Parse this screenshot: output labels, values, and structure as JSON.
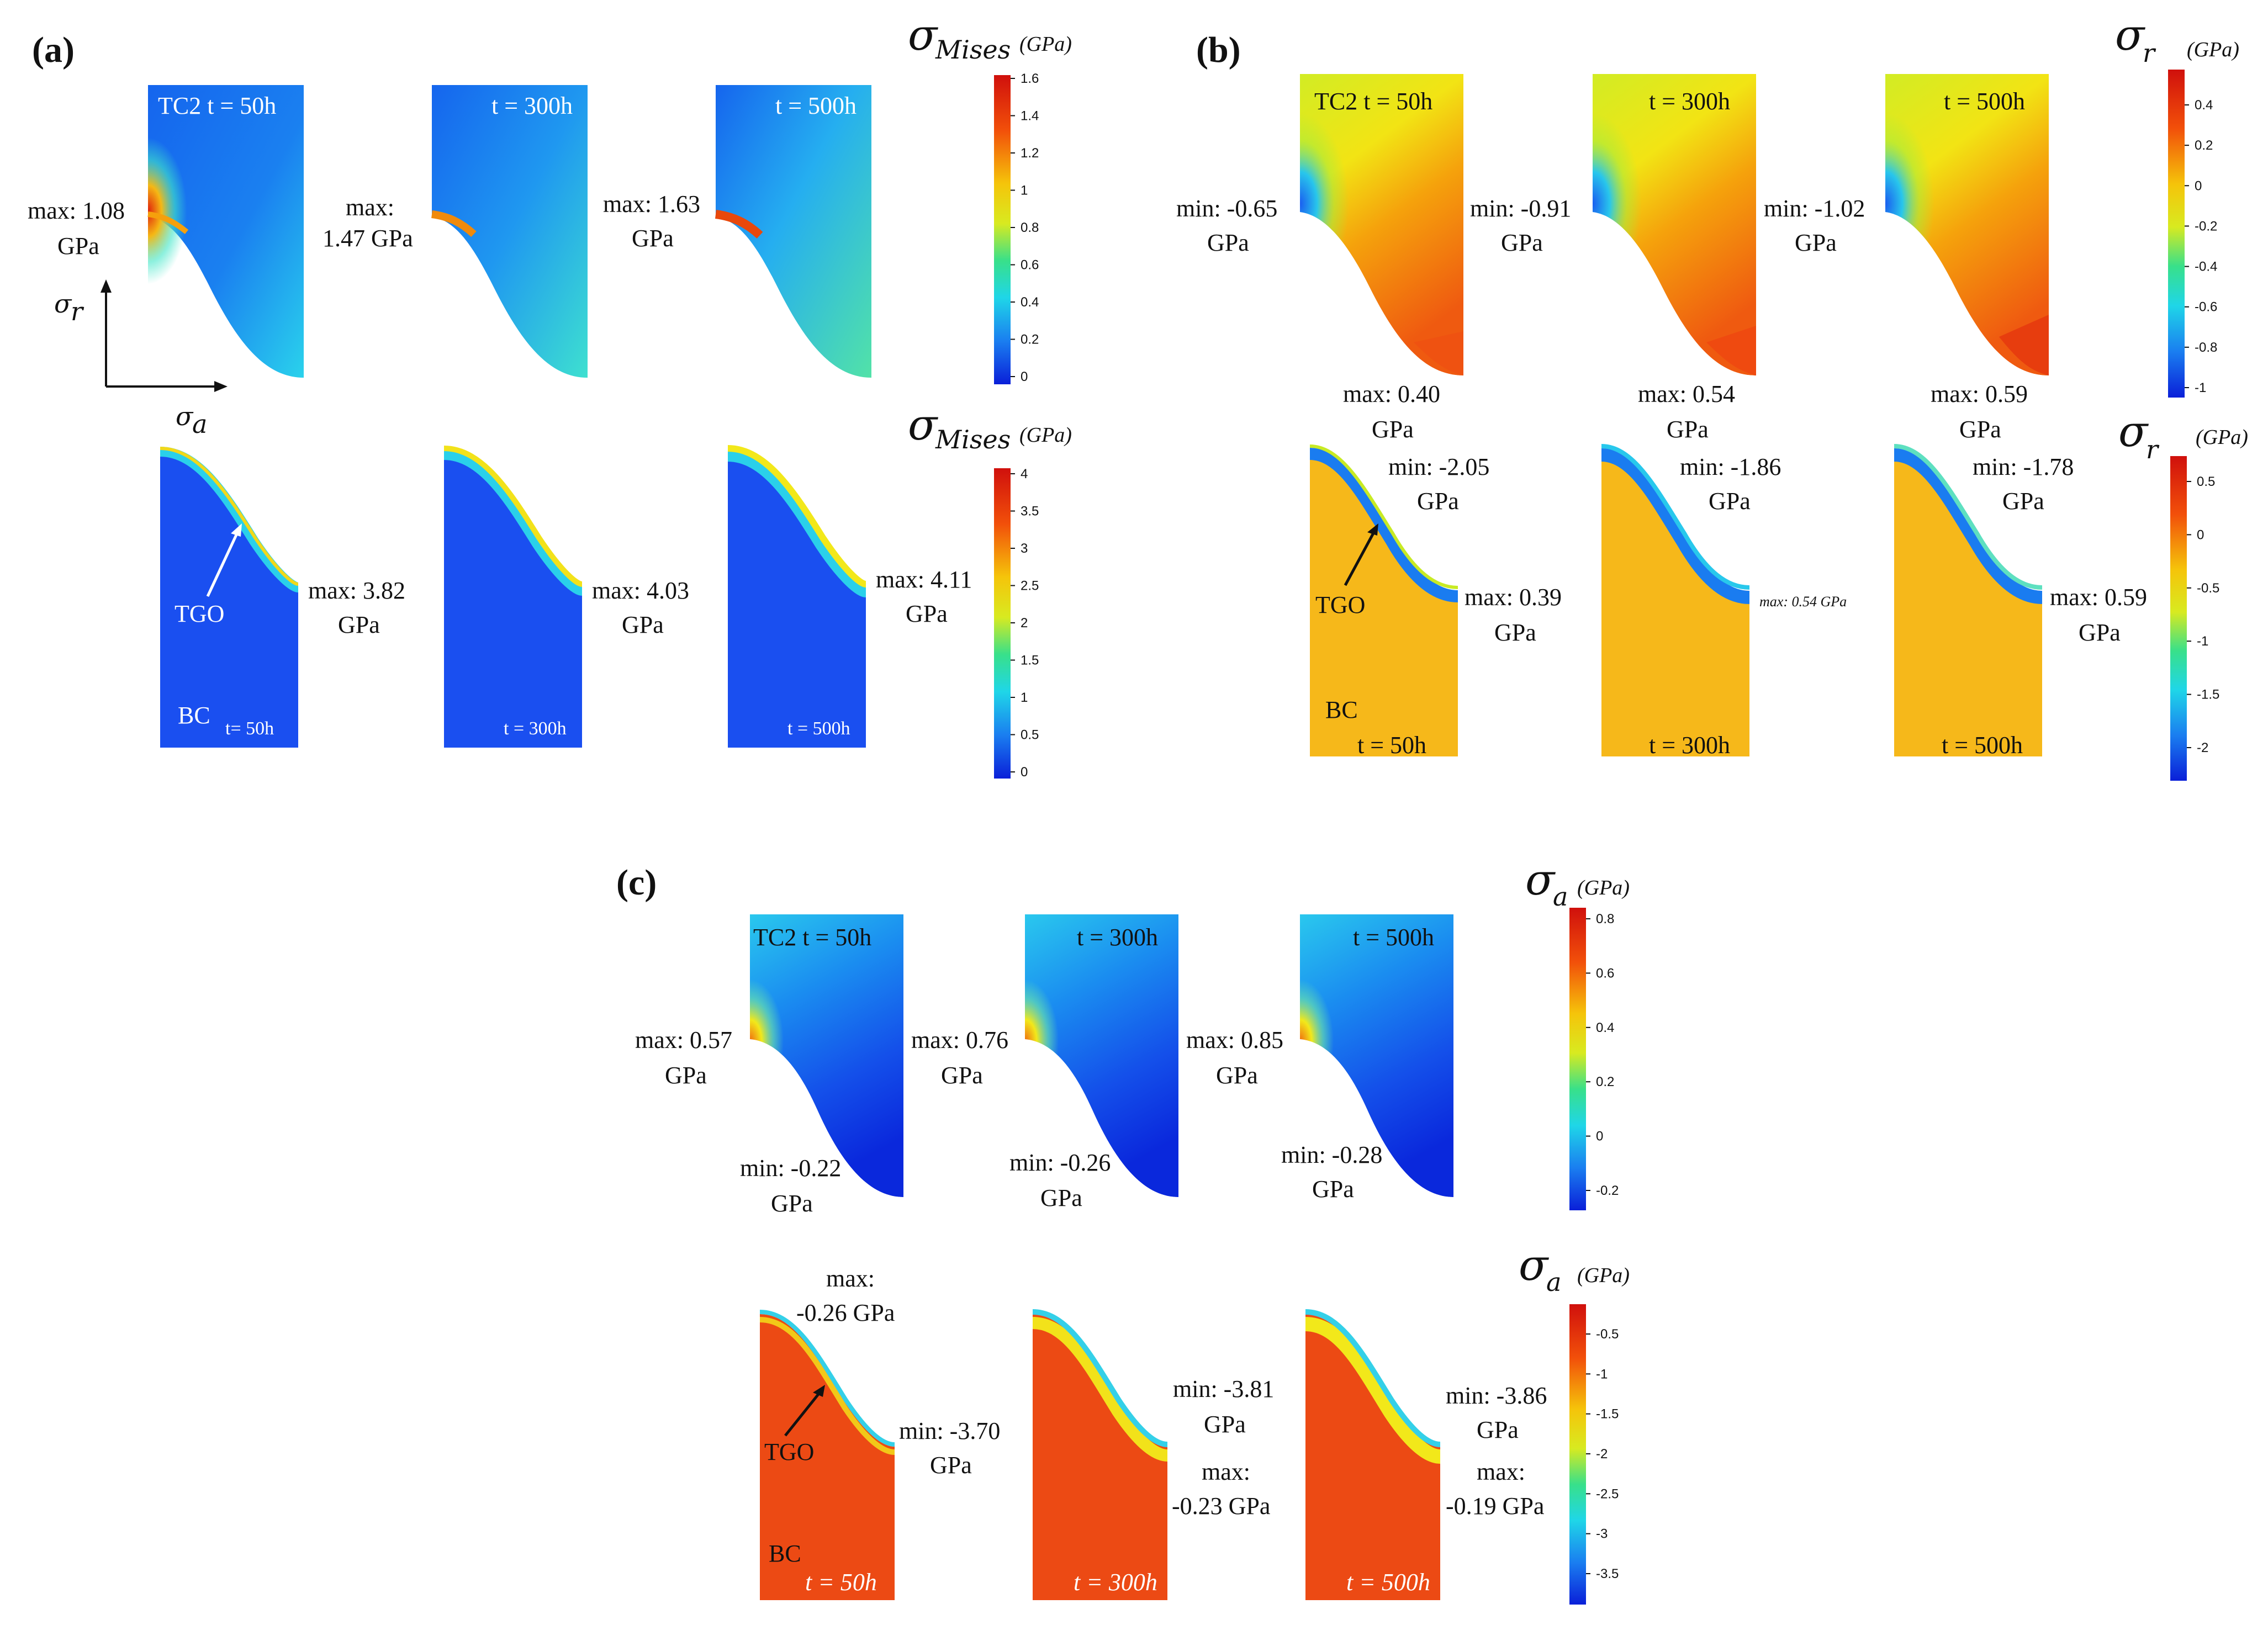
{
  "colors": {
    "blue_dark": "#0a2bd8",
    "blue": "#1a6cf0",
    "cyan": "#27c8ec",
    "yellow": "#f2f21a",
    "orange": "#f5a40a",
    "red": "#e83a10",
    "bc_orange": "#f6b81a",
    "bc_red": "#ec4a14"
  },
  "panel_a": {
    "label": "(a)",
    "top": {
      "colorbar_symbol": "σ",
      "colorbar_sub": "Mises",
      "colorbar_unit": "(GPa)",
      "colorbar_ticks": [
        "1.6",
        "1.4",
        "1.2",
        "1",
        "0.8",
        "0.6",
        "0.4",
        "0.2",
        "0"
      ],
      "titles": [
        "TC2 t = 50h",
        "t = 300h",
        "t = 500h"
      ],
      "ann_1": [
        "max: 1.08",
        "GPa"
      ],
      "ann_2": [
        "max:",
        "1.47 GPa"
      ],
      "ann_3": [
        "max: 1.63",
        "GPa"
      ]
    },
    "axes": {
      "y_label": "σ",
      "y_sub": "r",
      "x_label": "σ",
      "x_sub": "a"
    },
    "bottom": {
      "colorbar_symbol": "σ",
      "colorbar_sub": "Mises",
      "colorbar_unit": "(GPa)",
      "colorbar_ticks": [
        "4",
        "3.5",
        "3",
        "2.5",
        "2",
        "1.5",
        "1",
        "0.5",
        "0"
      ],
      "tgo": "TGO",
      "bc": "BC",
      "times": [
        "t= 50h",
        "t = 300h",
        "t = 500h"
      ],
      "ann_1": [
        "max: 3.82",
        "GPa"
      ],
      "ann_2": [
        "max: 4.03",
        "GPa"
      ],
      "ann_3": [
        "max: 4.11",
        "GPa"
      ]
    }
  },
  "panel_b": {
    "label": "(b)",
    "top": {
      "colorbar_symbol": "σ",
      "colorbar_sub": "r",
      "colorbar_unit": "(GPa)",
      "colorbar_ticks": [
        "0.4",
        "0.2",
        "0",
        "-0.2",
        "-0.4",
        "-0.6",
        "-0.8",
        "-1"
      ],
      "titles": [
        "TC2 t = 50h",
        "t = 300h",
        "t = 500h"
      ],
      "min_1": [
        "min: -0.65",
        "GPa"
      ],
      "min_2": [
        "min: -0.91",
        "GPa"
      ],
      "min_3": [
        "min: -1.02",
        "GPa"
      ],
      "max_1": [
        "max: 0.40",
        "GPa"
      ],
      "max_2": [
        "max: 0.54",
        "GPa"
      ],
      "max_3": [
        "max: 0.59",
        "GPa"
      ]
    },
    "bottom": {
      "colorbar_symbol": "σ",
      "colorbar_sub": "r",
      "colorbar_unit": "(GPa)",
      "colorbar_ticks": [
        "0.5",
        "0",
        "-0.5",
        "-1",
        "-1.5",
        "-2"
      ],
      "tgo": "TGO",
      "bc": "BC",
      "times": [
        "t = 50h",
        "t = 300h",
        "t = 500h"
      ],
      "min_1": [
        "min: -2.05",
        "GPa"
      ],
      "min_2": [
        "min: -1.86",
        "GPa"
      ],
      "min_3": [
        "min: -1.78",
        "GPa"
      ],
      "max_1": [
        "max: 0.39",
        "GPa"
      ],
      "max_2_small": "max: 0.54 GPa",
      "max_3": [
        "max: 0.59",
        "GPa"
      ]
    }
  },
  "panel_c": {
    "label": "(c)",
    "top": {
      "colorbar_symbol": "σ",
      "colorbar_sub": "a",
      "colorbar_unit": "(GPa)",
      "colorbar_ticks": [
        "0.8",
        "0.6",
        "0.4",
        "0.2",
        "0",
        "-0.2"
      ],
      "titles": [
        "TC2  t = 50h",
        "t = 300h",
        "t = 500h"
      ],
      "max_1": [
        "max: 0.57",
        "GPa"
      ],
      "max_2": [
        "max: 0.76",
        "GPa"
      ],
      "max_3": [
        "max: 0.85",
        "GPa"
      ],
      "min_1": [
        "min: -0.22",
        "GPa"
      ],
      "min_2": [
        "min: -0.26",
        "GPa"
      ],
      "min_3": [
        "min: -0.28",
        "GPa"
      ]
    },
    "bottom": {
      "colorbar_symbol": "σ",
      "colorbar_sub": "a",
      "colorbar_unit": "(GPa)",
      "colorbar_ticks": [
        "-0.5",
        "-1",
        "-1.5",
        "-2",
        "-2.5",
        "-3",
        "-3.5"
      ],
      "tgo": "TGO",
      "bc": "BC",
      "times": [
        "t = 50h",
        "t = 300h",
        "t = 500h"
      ],
      "max_1": [
        "max:",
        "-0.26 GPa"
      ],
      "min_1": [
        "min: -3.70",
        "GPa"
      ],
      "min_2": [
        "min: -3.81",
        "GPa"
      ],
      "max_2": [
        "max:",
        "-0.23 GPa"
      ],
      "min_3": [
        "min: -3.86",
        "GPa"
      ],
      "max_3": [
        "max:",
        "-0.19 GPa"
      ]
    }
  }
}
